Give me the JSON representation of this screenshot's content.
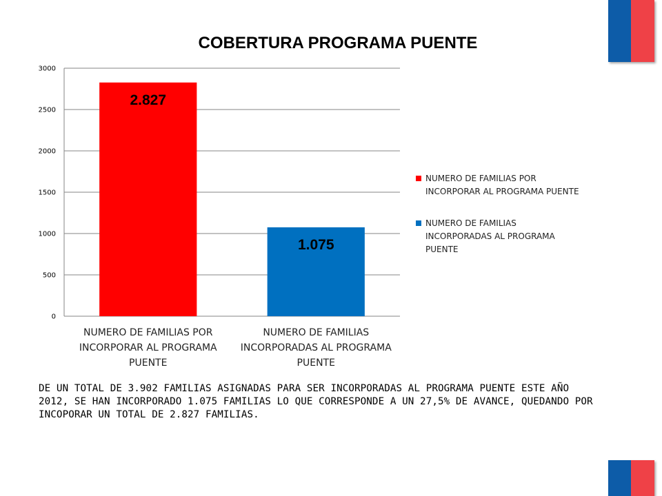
{
  "chart_data": {
    "type": "bar",
    "title": "COBERTURA PROGRAMA PUENTE",
    "categories": [
      "NUMERO DE FAMILIAS POR INCORPORAR AL PROGRAMA PUENTE",
      "NUMERO DE FAMILIAS INCORPORADAS AL PROGRAMA PUENTE"
    ],
    "category_lines": [
      [
        "NUMERO DE FAMILIAS POR",
        "INCORPORAR AL PROGRAMA",
        "PUENTE"
      ],
      [
        "NUMERO DE FAMILIAS",
        "INCORPORADAS AL PROGRAMA",
        "PUENTE"
      ]
    ],
    "values": [
      2827,
      1075
    ],
    "data_labels": [
      "2.827",
      "1.075"
    ],
    "colors": [
      "#ff0000",
      "#0070c0"
    ],
    "ylim": [
      0,
      3000
    ],
    "yticks": [
      0,
      500,
      1000,
      1500,
      2000,
      2500,
      3000
    ],
    "grid": true,
    "legend_position": "right",
    "legend": [
      {
        "lines": [
          "NUMERO DE FAMILIAS POR",
          "INCORPORAR AL PROGRAMA PUENTE"
        ],
        "color": "#ff0000"
      },
      {
        "lines": [
          "NUMERO DE FAMILIAS",
          "INCORPORADAS AL PROGRAMA",
          "PUENTE"
        ],
        "color": "#0070c0"
      }
    ],
    "xlabel": "",
    "ylabel": ""
  },
  "note": "DE UN TOTAL DE 3.902 FAMILIAS ASIGNADAS PARA SER INCORPORADAS AL PROGRAMA PUENTE ESTE AÑO 2012, SE HAN INCORPORADO 1.075 FAMILIAS LO QUE CORRESPONDE A UN 27,5% DE AVANCE, QUEDANDO POR INCOPORAR UN TOTAL DE 2.827 FAMILIAS.",
  "brand": {
    "flag_colors": [
      "#0d5ca8",
      "#ef4147"
    ]
  }
}
